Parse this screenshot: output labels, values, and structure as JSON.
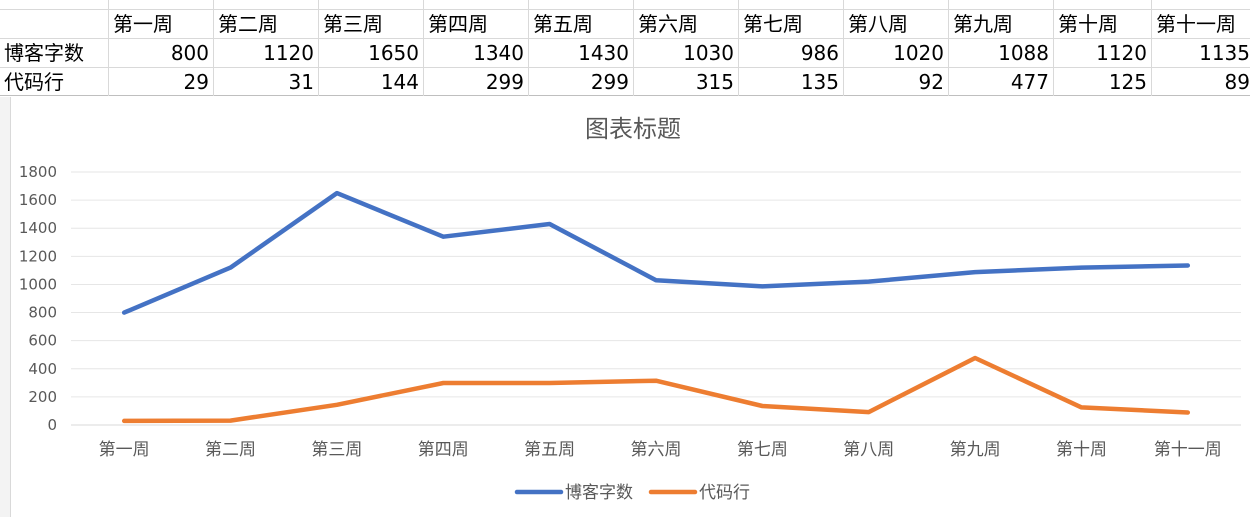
{
  "sheet": {
    "header_row": [
      "第一周",
      "第二周",
      "第三周",
      "第四周",
      "第五周",
      "第六周",
      "第七周",
      "第八周",
      "第九周",
      "第十周",
      "第十一周"
    ],
    "rows": [
      {
        "label": "博客字数",
        "values": [
          "800",
          "1120",
          "1650",
          "1340",
          "1430",
          "1030",
          "986",
          "1020",
          "1088",
          "1120",
          "1135"
        ]
      },
      {
        "label": "代码行",
        "values": [
          "29",
          "31",
          "144",
          "299",
          "299",
          "315",
          "135",
          "92",
          "477",
          "125",
          "89"
        ]
      }
    ]
  },
  "chart_data": {
    "type": "line",
    "title": "图表标题",
    "categories": [
      "第一周",
      "第二周",
      "第三周",
      "第四周",
      "第五周",
      "第六周",
      "第七周",
      "第八周",
      "第九周",
      "第十周",
      "第十一周"
    ],
    "series": [
      {
        "name": "博客字数",
        "color": "#4472C4",
        "values": [
          800,
          1120,
          1650,
          1340,
          1430,
          1030,
          986,
          1020,
          1088,
          1120,
          1135
        ]
      },
      {
        "name": "代码行",
        "color": "#ED7D31",
        "values": [
          29,
          31,
          144,
          299,
          299,
          315,
          135,
          92,
          477,
          125,
          89
        ]
      }
    ],
    "ylim": [
      0,
      1800
    ],
    "yticks": [
      0,
      200,
      400,
      600,
      800,
      1000,
      1200,
      1400,
      1600,
      1800
    ],
    "grid": true,
    "legend": "bottom",
    "xlabel": "",
    "ylabel": ""
  }
}
